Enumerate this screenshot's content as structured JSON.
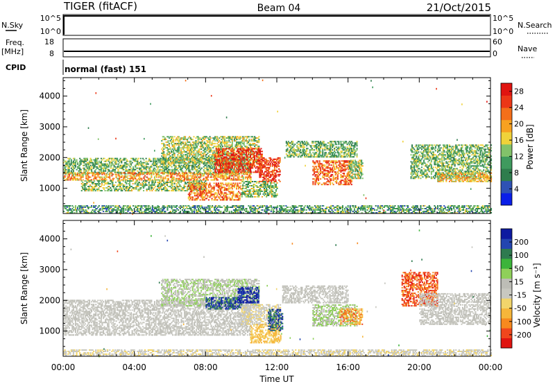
{
  "header": {
    "title": "TIGER (fitACF)",
    "beam": "Beam 04",
    "date": "21/Oct/2015"
  },
  "strips": {
    "nsky_label": "N.Sky",
    "nsky_ticks": [
      "10^5",
      "10^0"
    ],
    "nsearch_label": "N.Search",
    "nsearch_ticks": [
      "10^5",
      "10^0"
    ],
    "freq_label_1": "Freq.",
    "freq_label_2": "[MHz]",
    "freq_ticks": [
      "18",
      "8"
    ],
    "nave_label": "Nave",
    "nave_ticks": [
      "60",
      "0"
    ],
    "cpid_label": "CPID",
    "cpid_text": "normal (fast) 151"
  },
  "chart_data": [
    {
      "type": "heatmap",
      "panel": "power",
      "ylabel": "Slant Range [km]",
      "xlabel": "Time UT",
      "x_ticks": [
        "00:00",
        "04:00",
        "08:00",
        "12:00",
        "16:00",
        "20:00",
        "00:00"
      ],
      "xlim_hours": [
        0,
        24
      ],
      "y_ticks": [
        1000,
        2000,
        3000,
        4000
      ],
      "ylim_km": [
        180,
        4600
      ],
      "colorbar": {
        "label": "Power [dB]",
        "ticks": [
          "4",
          "8",
          "12",
          "16",
          "20",
          "24",
          "28"
        ],
        "range": [
          0,
          30
        ],
        "colors": [
          "#0a1ee8",
          "#2f52b4",
          "#2e7d4d",
          "#3f9a5e",
          "#82c26a",
          "#f0d23a",
          "#f7a120",
          "#f46f1a",
          "#ec3717",
          "#e01410"
        ]
      },
      "regions": [
        {
          "t0": 0.0,
          "t1": 24.0,
          "r0": 180,
          "r1": 420,
          "db": 10
        },
        {
          "t0": 0.0,
          "t1": 10.5,
          "r0": 1450,
          "r1": 1950,
          "db": 12
        },
        {
          "t0": 0.0,
          "t1": 10.5,
          "r0": 1250,
          "r1": 1500,
          "db": 20
        },
        {
          "t0": 1.0,
          "t1": 8.0,
          "r0": 900,
          "r1": 1250,
          "db": 13
        },
        {
          "t0": 5.5,
          "t1": 11.0,
          "r0": 1800,
          "r1": 2700,
          "db": 14
        },
        {
          "t0": 7.0,
          "t1": 10.0,
          "r0": 600,
          "r1": 1150,
          "db": 22
        },
        {
          "t0": 8.5,
          "t1": 11.2,
          "r0": 1500,
          "r1": 2300,
          "db": 26
        },
        {
          "t0": 10.0,
          "t1": 12.0,
          "r0": 700,
          "r1": 1200,
          "db": 13
        },
        {
          "t0": 11.0,
          "t1": 12.2,
          "r0": 1200,
          "r1": 2000,
          "db": 26
        },
        {
          "t0": 12.5,
          "t1": 16.5,
          "r0": 2000,
          "r1": 2500,
          "db": 12
        },
        {
          "t0": 14.0,
          "t1": 16.2,
          "r0": 1100,
          "r1": 1900,
          "db": 23
        },
        {
          "t0": 16.0,
          "t1": 16.8,
          "r0": 1300,
          "r1": 1900,
          "db": 14
        },
        {
          "t0": 19.5,
          "t1": 24.0,
          "r0": 1300,
          "r1": 2400,
          "db": 12
        },
        {
          "t0": 21.0,
          "t1": 24.0,
          "r0": 1200,
          "r1": 1500,
          "db": 18
        }
      ]
    },
    {
      "type": "heatmap",
      "panel": "velocity",
      "ylabel": "Slant Range [km]",
      "xlabel": "Time UT",
      "x_ticks": [
        "00:00",
        "04:00",
        "08:00",
        "12:00",
        "16:00",
        "20:00",
        "00:00"
      ],
      "xlim_hours": [
        0,
        24
      ],
      "y_ticks": [
        1000,
        2000,
        3000,
        4000
      ],
      "ylim_km": [
        180,
        4600
      ],
      "colorbar": {
        "label": "Velocity [m s⁻¹]",
        "ticks": [
          "200",
          "100",
          "50",
          "15",
          "-15",
          "-50",
          "-100",
          "-200"
        ],
        "range": [
          -250,
          250
        ],
        "colors": [
          "#e01410",
          "#f0461c",
          "#f7891e",
          "#f6b63a",
          "#f2d56b",
          "#c8c8c0",
          "#bdbdb6",
          "#8fd05a",
          "#3cb43a",
          "#2e7a4f",
          "#2345b0",
          "#0d1aa0"
        ]
      },
      "regions": [
        {
          "t0": 0.0,
          "t1": 24.0,
          "r0": 180,
          "r1": 380,
          "v": -30
        },
        {
          "t0": 0.0,
          "t1": 10.5,
          "r0": 850,
          "r1": 2000,
          "v": 0
        },
        {
          "t0": 5.5,
          "t1": 11.0,
          "r0": 1800,
          "r1": 2700,
          "v": 35
        },
        {
          "t0": 8.0,
          "t1": 10.0,
          "r0": 1700,
          "r1": 2100,
          "v": 180
        },
        {
          "t0": 9.8,
          "t1": 11.0,
          "r0": 1900,
          "r1": 2400,
          "v": 220
        },
        {
          "t0": 10.0,
          "t1": 12.2,
          "r0": 1200,
          "r1": 1850,
          "v": -30
        },
        {
          "t0": 10.5,
          "t1": 12.2,
          "r0": 600,
          "r1": 1200,
          "v": -90
        },
        {
          "t0": 11.5,
          "t1": 12.3,
          "r0": 1000,
          "r1": 1700,
          "v": 180
        },
        {
          "t0": 12.3,
          "t1": 16.0,
          "r0": 1900,
          "r1": 2450,
          "v": 0
        },
        {
          "t0": 14.0,
          "t1": 16.5,
          "r0": 1150,
          "r1": 1850,
          "v": 45
        },
        {
          "t0": 15.5,
          "t1": 16.8,
          "r0": 1200,
          "r1": 1700,
          "v": -120
        },
        {
          "t0": 19.0,
          "t1": 21.0,
          "r0": 1800,
          "r1": 2900,
          "v": -180
        },
        {
          "t0": 20.0,
          "t1": 24.0,
          "r0": 1200,
          "r1": 2200,
          "v": 0
        }
      ]
    }
  ],
  "xlabel": "Time UT"
}
